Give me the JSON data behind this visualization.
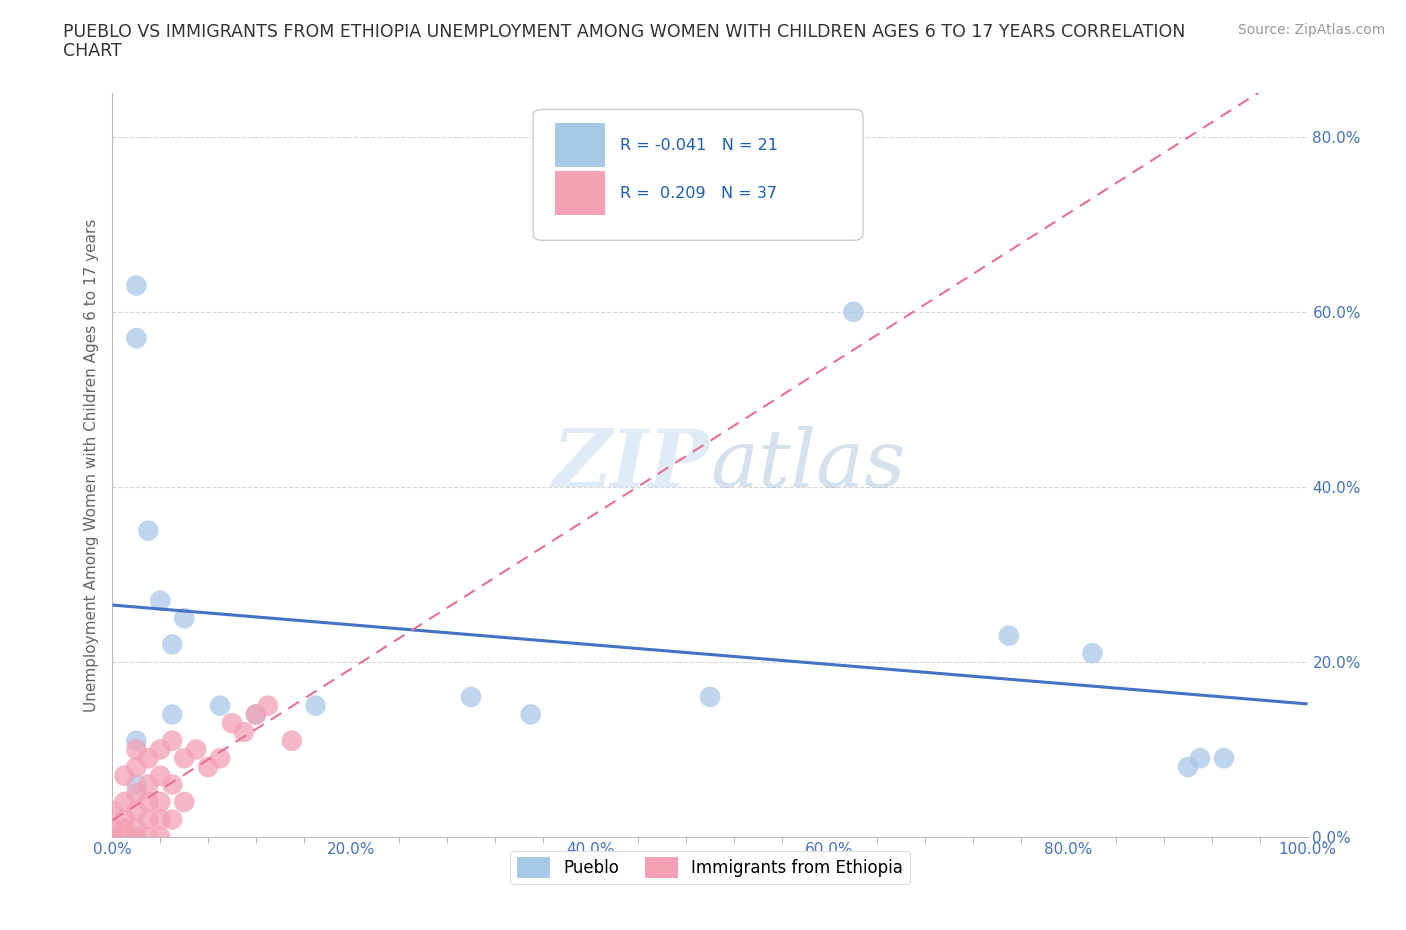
{
  "title_line1": "PUEBLO VS IMMIGRANTS FROM ETHIOPIA UNEMPLOYMENT AMONG WOMEN WITH CHILDREN AGES 6 TO 17 YEARS CORRELATION",
  "title_line2": "CHART",
  "source": "Source: ZipAtlas.com",
  "ylabel": "Unemployment Among Women with Children Ages 6 to 17 years",
  "xlim": [
    0.0,
    1.0
  ],
  "ylim": [
    0.0,
    0.85
  ],
  "ytick_labels": [
    "0.0%",
    "20.0%",
    "40.0%",
    "60.0%",
    "80.0%"
  ],
  "ytick_values": [
    0.0,
    0.2,
    0.4,
    0.6,
    0.8
  ],
  "xtick_vals": [
    0.0,
    0.2,
    0.4,
    0.6,
    0.8,
    1.0
  ],
  "xtick_labels": [
    "0.0%",
    "20.0%",
    "40.0%",
    "60.0%",
    "80.0%",
    "100.0%"
  ],
  "pueblo_x": [
    0.02,
    0.02,
    0.03,
    0.04,
    0.05,
    0.06,
    0.09,
    0.12,
    0.17,
    0.3,
    0.35,
    0.5,
    0.62,
    0.75,
    0.82,
    0.9,
    0.91,
    0.93,
    0.02,
    0.02,
    0.05
  ],
  "pueblo_y": [
    0.63,
    0.57,
    0.35,
    0.27,
    0.22,
    0.25,
    0.15,
    0.14,
    0.15,
    0.16,
    0.14,
    0.16,
    0.6,
    0.23,
    0.21,
    0.08,
    0.09,
    0.09,
    0.11,
    0.06,
    0.14
  ],
  "ethiopia_x": [
    0.0,
    0.0,
    0.0,
    0.01,
    0.01,
    0.01,
    0.01,
    0.01,
    0.02,
    0.02,
    0.02,
    0.02,
    0.02,
    0.02,
    0.03,
    0.03,
    0.03,
    0.03,
    0.03,
    0.04,
    0.04,
    0.04,
    0.04,
    0.04,
    0.05,
    0.05,
    0.05,
    0.06,
    0.06,
    0.07,
    0.08,
    0.09,
    0.1,
    0.11,
    0.12,
    0.13,
    0.15
  ],
  "ethiopia_y": [
    0.0,
    0.01,
    0.03,
    0.0,
    0.01,
    0.02,
    0.04,
    0.07,
    0.0,
    0.01,
    0.03,
    0.05,
    0.08,
    0.1,
    0.0,
    0.02,
    0.04,
    0.06,
    0.09,
    0.0,
    0.02,
    0.04,
    0.07,
    0.1,
    0.02,
    0.06,
    0.11,
    0.04,
    0.09,
    0.1,
    0.08,
    0.09,
    0.13,
    0.12,
    0.14,
    0.15,
    0.11
  ],
  "pueblo_color": "#A8C8E8",
  "ethiopia_color": "#F4A0B5",
  "pueblo_line_color": "#4472C4",
  "ethiopia_line_color": "#E87090",
  "R_pueblo": -0.041,
  "N_pueblo": 21,
  "R_ethiopia": 0.209,
  "N_ethiopia": 37,
  "watermark_zip": "ZIP",
  "watermark_atlas": "atlas",
  "legend_pueblo": "Pueblo",
  "legend_ethiopia": "Immigrants from Ethiopia",
  "grid_color": "#CCCCCC",
  "background_color": "#FFFFFF",
  "title_color": "#333333",
  "axis_label_color": "#666666",
  "tick_color": "#4472C4",
  "source_color": "#999999"
}
